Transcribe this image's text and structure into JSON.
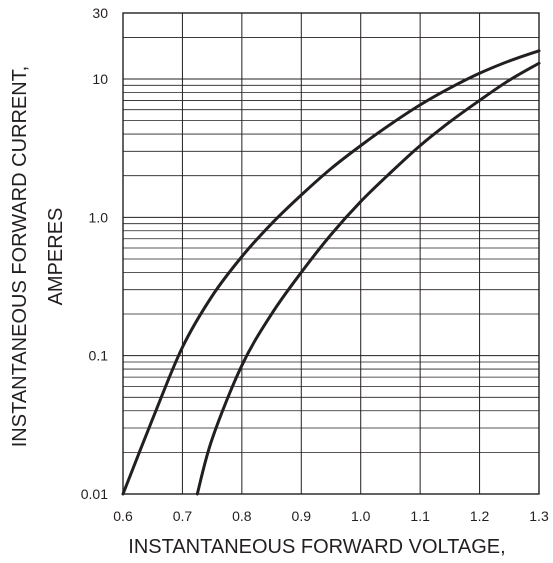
{
  "chart_data": {
    "type": "line",
    "xlabel": "INSTANTANEOUS FORWARD VOLTAGE,",
    "ylabel_lines": [
      "INSTANTANEOUS FORWARD CURRENT,",
      "AMPERES"
    ],
    "x_scale": "linear",
    "y_scale": "log",
    "xlim": [
      0.6,
      1.3
    ],
    "ylim": [
      0.01,
      30
    ],
    "x_ticks": [
      0.6,
      0.7,
      0.8,
      0.9,
      1.0,
      1.1,
      1.2,
      1.3
    ],
    "x_tick_labels": [
      "0.6",
      "0.7",
      "0.8",
      "0.9",
      "1.0",
      "1.1",
      "1.2",
      "1.3"
    ],
    "y_ticks": [
      0.01,
      0.1,
      1.0,
      10,
      30
    ],
    "y_tick_labels": [
      "0.01",
      "0.1",
      "1.0",
      "10",
      "30"
    ],
    "grid": true,
    "series": [
      {
        "x": [
          0.6,
          0.65,
          0.7,
          0.75,
          0.8,
          0.85,
          0.9,
          0.95,
          1.0,
          1.05,
          1.1,
          1.15,
          1.2,
          1.25,
          1.3
        ],
        "y": [
          0.01,
          0.035,
          0.115,
          0.27,
          0.52,
          0.9,
          1.45,
          2.25,
          3.3,
          4.7,
          6.5,
          8.6,
          11,
          13.5,
          16
        ]
      },
      {
        "x": [
          0.725,
          0.75,
          0.8,
          0.85,
          0.9,
          0.95,
          1.0,
          1.05,
          1.1,
          1.15,
          1.2,
          1.25,
          1.3
        ],
        "y": [
          0.01,
          0.025,
          0.085,
          0.2,
          0.4,
          0.75,
          1.3,
          2.1,
          3.3,
          4.9,
          7.0,
          9.8,
          13
        ]
      }
    ]
  }
}
